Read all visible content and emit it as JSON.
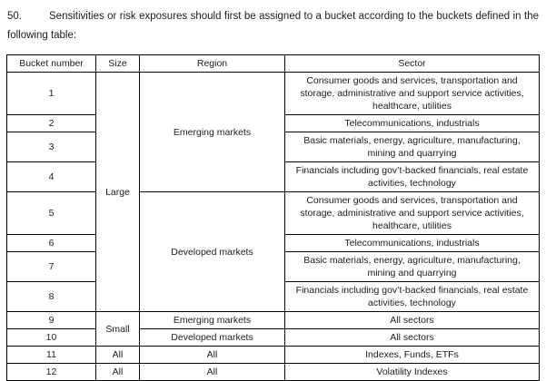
{
  "document": {
    "paragraph": {
      "number": "50.",
      "text": "Sensitivities or risk exposures should first be assigned to a bucket according to the buckets defined in the following table:"
    },
    "table": {
      "headers": [
        "Bucket number",
        "Size",
        "Region",
        "Sector"
      ],
      "rows": [
        {
          "bucket": "1",
          "size": "Large",
          "region": "Emerging markets",
          "sector": "Consumer goods and services, transportation and storage, administrative and support service activities, healthcare, utilities"
        },
        {
          "bucket": "2",
          "sector": "Telecommunications, industrials"
        },
        {
          "bucket": "3",
          "sector": "Basic materials, energy, agriculture, manufacturing, mining and quarrying"
        },
        {
          "bucket": "4",
          "sector": "Financials including gov’t-backed financials, real estate activities, technology"
        },
        {
          "bucket": "5",
          "region": "Developed markets",
          "sector": "Consumer goods and services, transportation and storage, administrative and support service activities, healthcare, utilities"
        },
        {
          "bucket": "6",
          "sector": "Telecommunications, industrials"
        },
        {
          "bucket": "7",
          "sector": "Basic materials, energy, agriculture, manufacturing, mining and quarrying"
        },
        {
          "bucket": "8",
          "sector": "Financials including gov’t-backed financials, real estate activities, technology"
        },
        {
          "bucket": "9",
          "size": "Small",
          "region": "Emerging markets",
          "sector": "All sectors"
        },
        {
          "bucket": "10",
          "region": "Developed markets",
          "sector": "All sectors"
        },
        {
          "bucket": "11",
          "size": "All",
          "region": "All",
          "sector": "Indexes, Funds, ETFs"
        },
        {
          "bucket": "12",
          "size": "All",
          "region": "All",
          "sector": "Volatility Indexes"
        }
      ]
    }
  }
}
